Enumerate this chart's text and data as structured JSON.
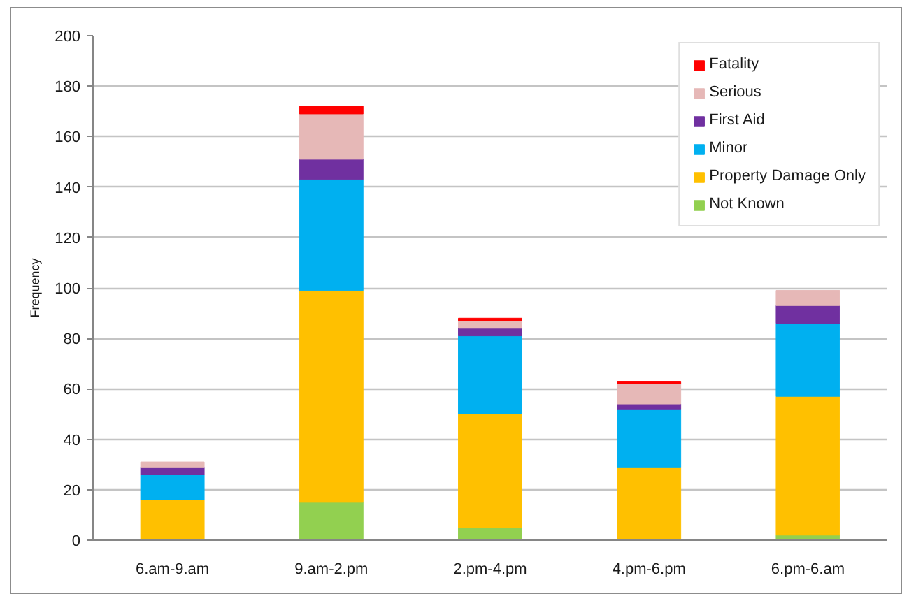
{
  "chart_data": {
    "type": "bar",
    "stacked": true,
    "ylabel": "Frequency",
    "categories": [
      "6.am-9.am",
      "9.am-2.pm",
      "2.pm-4.pm",
      "4.pm-6.pm",
      "6.pm-6.am"
    ],
    "series": [
      {
        "name": "Not Known",
        "color": "#92d050",
        "values": [
          0,
          15,
          5,
          0,
          2
        ]
      },
      {
        "name": "Property Damage Only",
        "color": "#ffc000",
        "values": [
          16,
          84,
          45,
          29,
          55
        ]
      },
      {
        "name": "Minor",
        "color": "#00b0f0",
        "values": [
          10,
          44,
          31,
          23,
          29
        ]
      },
      {
        "name": "First Aid",
        "color": "#7030a0",
        "values": [
          3,
          8,
          3,
          2,
          7
        ]
      },
      {
        "name": "Serious",
        "color": "#e6b8b7",
        "values": [
          2,
          18,
          3,
          8,
          6
        ]
      },
      {
        "name": "Fatality",
        "color": "#ff0000",
        "values": [
          0,
          3,
          1,
          1,
          0
        ]
      }
    ],
    "ylim": [
      0,
      200
    ],
    "yticks": [
      0,
      20,
      40,
      60,
      80,
      100,
      120,
      140,
      160,
      180,
      200
    ],
    "grid": "y",
    "legend": "top right"
  }
}
